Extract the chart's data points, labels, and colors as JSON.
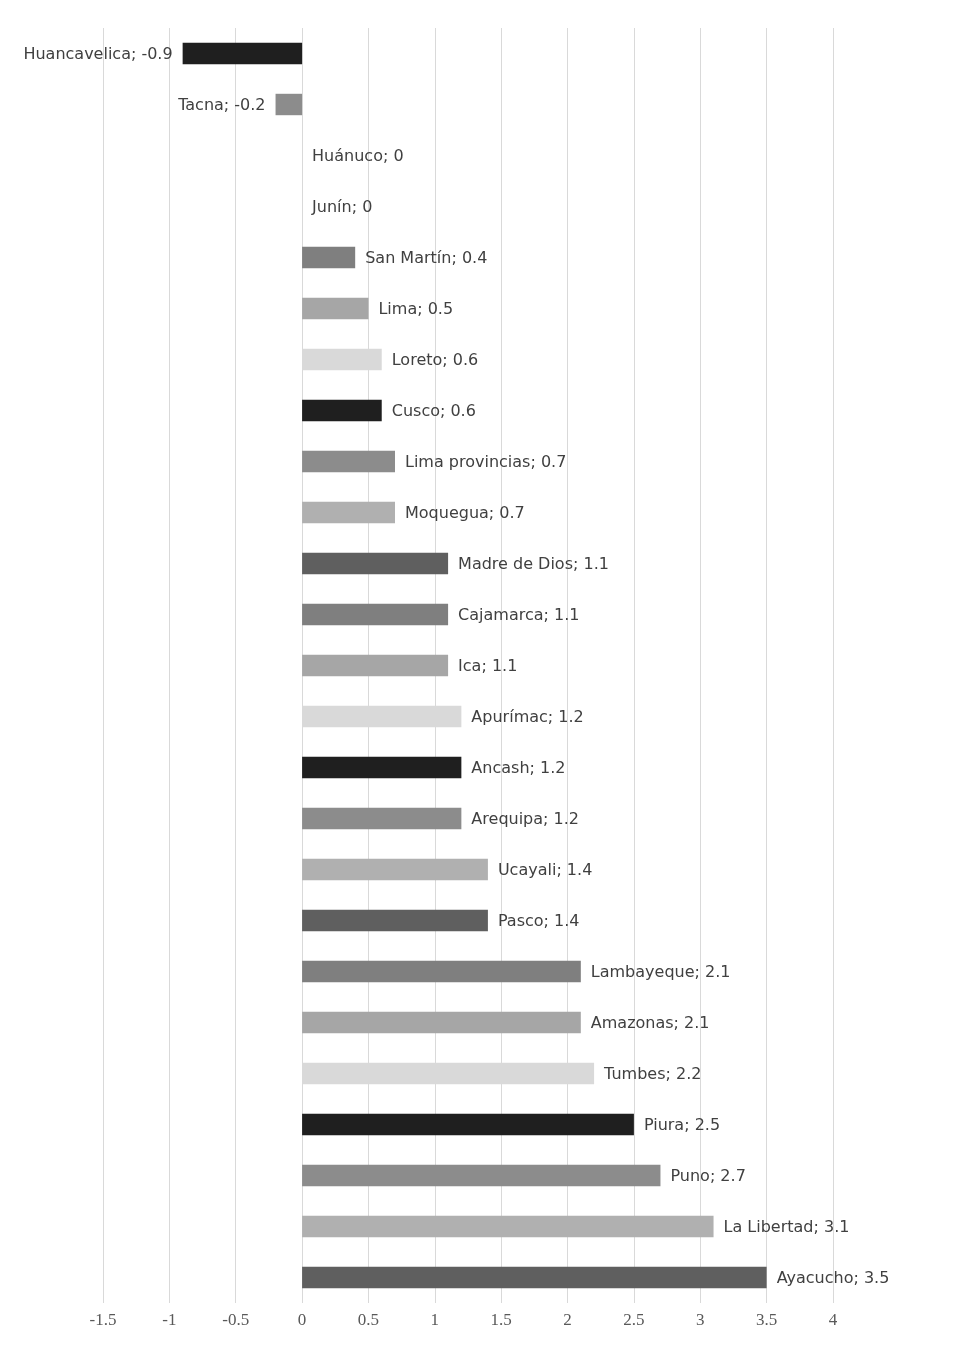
{
  "chart_data": {
    "type": "bar",
    "orientation": "horizontal",
    "categories": [
      null,
      null,
      null,
      null,
      null,
      null,
      null,
      null,
      null,
      null,
      null,
      null,
      null,
      null,
      null,
      null,
      null,
      null,
      null,
      null,
      null,
      null,
      null,
      null,
      null
    ],
    "values": [
      -0.9,
      -0.2,
      0,
      0,
      0.4,
      0.5,
      0.6,
      0.6,
      0.7,
      0.7,
      1.1,
      1.1,
      1.1,
      1.2,
      1.2,
      1.2,
      1.4,
      1.4,
      2.1,
      2.1,
      2.2,
      2.5,
      2.7,
      3.1,
      3.5
    ],
    "colors": [
      "#1f1f1f",
      "#8c8c8c",
      "#b0b0b0",
      "#5f5f5f",
      "#7f7f7f",
      "#a6a6a6",
      "#d9d9d9",
      "#1f1f1f",
      "#8c8c8c",
      "#b0b0b0",
      "#5f5f5f",
      "#7f7f7f",
      "#a6a6a6",
      "#d9d9d9",
      "#1f1f1f",
      "#8c8c8c",
      "#b0b0b0",
      "#5f5f5f",
      "#7f7f7f",
      "#a6a6a6",
      "#d9d9d9",
      "#1f1f1f",
      "#8c8c8c",
      "#b0b0b0",
      "#5f5f5f"
    ],
    "xlim": [
      -1.5,
      4
    ],
    "xticks": [
      -1.5,
      -1,
      -0.5,
      0,
      0.5,
      1,
      1.5,
      2,
      2.5,
      3,
      3.5,
      4
    ],
    "value_labels": [
      "Huancavelica; -0.9",
      "Tacna; -0.2",
      "Huánuco; 0",
      "Junín; 0",
      "San Martín; 0.4",
      "Lima; 0.5",
      "Loreto; 0.6",
      "Cusco; 0.6",
      "Lima provincias; 0.7",
      "Moquegua; 0.7",
      "Madre de Dios; 1.1",
      "Cajamarca; 1.1",
      "Ica; 1.1",
      "Apurímac; 1.2",
      "Ancash; 1.2",
      "Arequipa; 1.2",
      "Ucayali; 1.4",
      "Pasco; 1.4",
      "Lambayeque; 2.1",
      "Amazonas; 2.1",
      "Tumbes; 2.2",
      "Piura; 2.5",
      "Puno; 2.7",
      "La Libertad; 3.1",
      "Ayacucho; 3.5"
    ],
    "grid": "x",
    "tick_labels": "x"
  }
}
